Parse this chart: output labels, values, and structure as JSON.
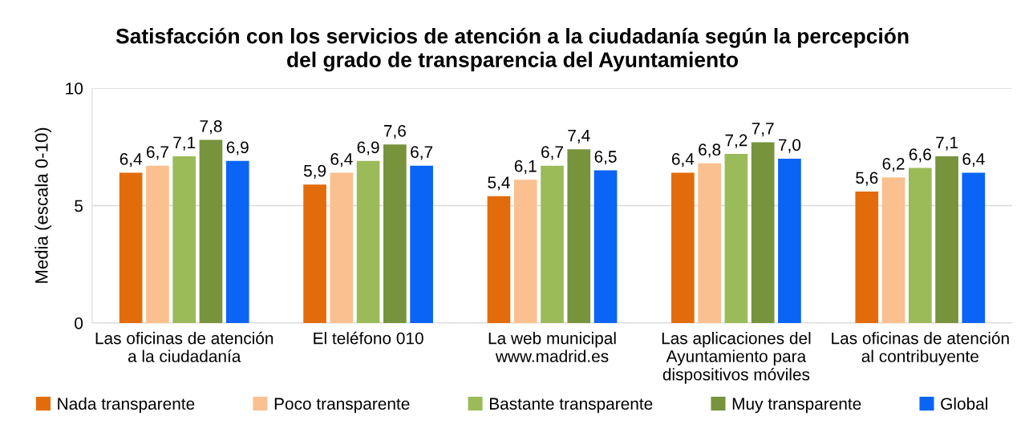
{
  "chart_data": {
    "type": "bar",
    "title": "Satisfacción con los servicios de atención a la ciudadanía según la percepción\ndel grado de transparencia del Ayuntamiento",
    "ylabel": "Media (escala 0-10)",
    "categories": [
      "Las oficinas de atención\na la ciudadanía",
      "El teléfono 010",
      "La web municipal\nwww.madrid.es",
      "Las aplicaciones del\nAyuntamiento para\ndispositivos móviles",
      "Las oficinas de atención\nal contribuyente"
    ],
    "series": [
      {
        "name": "Nada transparente",
        "color": "#e36c0a",
        "values": [
          6.4,
          5.9,
          5.4,
          6.4,
          5.6
        ],
        "value_labels": [
          "6,4",
          "5,9",
          "5,4",
          "6,4",
          "5,6"
        ]
      },
      {
        "name": "Poco transparente",
        "color": "#fac090",
        "values": [
          6.7,
          6.4,
          6.1,
          6.8,
          6.2
        ],
        "value_labels": [
          "6,7",
          "6,4",
          "6,1",
          "6,8",
          "6,2"
        ]
      },
      {
        "name": "Bastante transparente",
        "color": "#9bbb59",
        "values": [
          7.1,
          6.9,
          6.7,
          7.2,
          6.6
        ],
        "value_labels": [
          "7,1",
          "6,9",
          "6,7",
          "7,2",
          "6,6"
        ]
      },
      {
        "name": "Muy transparente",
        "color": "#77933c",
        "values": [
          7.8,
          7.6,
          7.4,
          7.7,
          7.1
        ],
        "value_labels": [
          "7,8",
          "7,6",
          "7,4",
          "7,7",
          "7,1"
        ]
      },
      {
        "name": "Global",
        "color": "#0a64f5",
        "values": [
          6.9,
          6.7,
          6.5,
          7.0,
          6.4
        ],
        "value_labels": [
          "6,9",
          "6,7",
          "6,5",
          "7,0",
          "6,4"
        ]
      }
    ],
    "ylim": [
      0,
      10
    ],
    "yticks": [
      0,
      5,
      10
    ],
    "grid": "y",
    "legend": "bottom"
  }
}
